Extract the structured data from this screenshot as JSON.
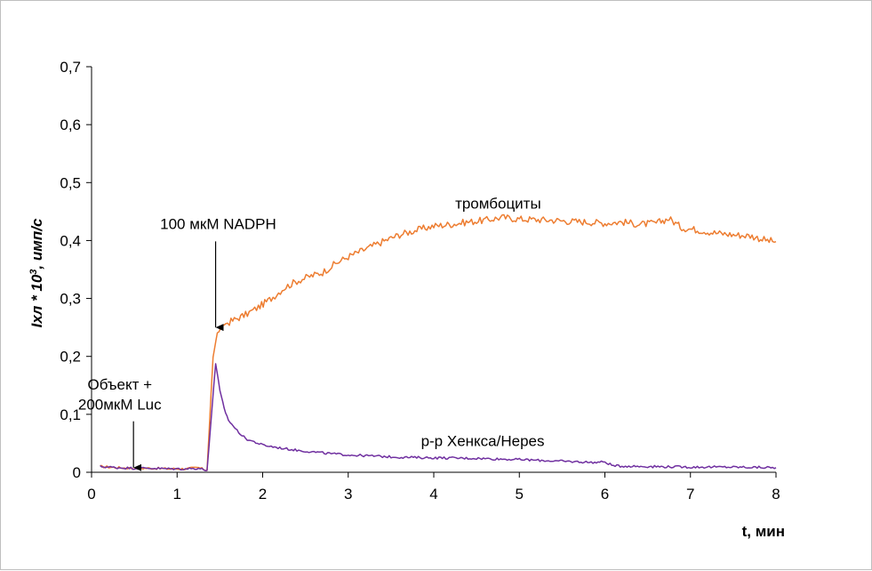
{
  "chart_data": {
    "type": "line",
    "title": "",
    "xlabel": "t, мин",
    "ylabel": {
      "base": "Iхл * 10",
      "exp": "3",
      "rest": ", имп/с"
    },
    "xlim": [
      0,
      8
    ],
    "ylim": [
      0,
      0.7
    ],
    "x_ticks": [
      0,
      1,
      2,
      3,
      4,
      5,
      6,
      7,
      8
    ],
    "y_ticks": [
      0,
      0.1,
      0.2,
      0.3,
      0.4,
      0.5,
      0.6,
      0.7
    ],
    "y_tick_labels": [
      "0",
      "0,1",
      "0,2",
      "0,3",
      "0,4",
      "0,5",
      "0,6",
      "0,7"
    ],
    "x_tick_labels": [
      "0",
      "1",
      "2",
      "3",
      "4",
      "5",
      "6",
      "7",
      "8"
    ],
    "grid": false,
    "legend": "none",
    "series": [
      {
        "name": "тромбоциты",
        "color": "#ED7D31",
        "points": [
          [
            0.1,
            0.01
          ],
          [
            0.3,
            0.008
          ],
          [
            0.5,
            0.007
          ],
          [
            0.7,
            0.007
          ],
          [
            0.9,
            0.006
          ],
          [
            1.1,
            0.006
          ],
          [
            1.25,
            0.008
          ],
          [
            1.35,
            0.003
          ],
          [
            1.42,
            0.2
          ],
          [
            1.47,
            0.24
          ],
          [
            1.55,
            0.255
          ],
          [
            1.65,
            0.262
          ],
          [
            1.8,
            0.272
          ],
          [
            1.95,
            0.285
          ],
          [
            2.1,
            0.3
          ],
          [
            2.25,
            0.318
          ],
          [
            2.4,
            0.33
          ],
          [
            2.55,
            0.338
          ],
          [
            2.7,
            0.345
          ],
          [
            2.85,
            0.36
          ],
          [
            3.0,
            0.372
          ],
          [
            3.2,
            0.385
          ],
          [
            3.4,
            0.398
          ],
          [
            3.6,
            0.41
          ],
          [
            3.8,
            0.418
          ],
          [
            4.0,
            0.425
          ],
          [
            4.2,
            0.428
          ],
          [
            4.4,
            0.432
          ],
          [
            4.6,
            0.435
          ],
          [
            4.8,
            0.44
          ],
          [
            5.0,
            0.437
          ],
          [
            5.2,
            0.436
          ],
          [
            5.4,
            0.435
          ],
          [
            5.6,
            0.433
          ],
          [
            5.8,
            0.432
          ],
          [
            6.0,
            0.43
          ],
          [
            6.2,
            0.432
          ],
          [
            6.4,
            0.428
          ],
          [
            6.6,
            0.43
          ],
          [
            6.75,
            0.438
          ],
          [
            6.9,
            0.422
          ],
          [
            7.1,
            0.418
          ],
          [
            7.3,
            0.413
          ],
          [
            7.5,
            0.41
          ],
          [
            7.7,
            0.408
          ],
          [
            7.9,
            0.4
          ],
          [
            8.0,
            0.398
          ]
        ]
      },
      {
        "name": "р-р Хенкса/Hepes",
        "color": "#7030A0",
        "points": [
          [
            0.1,
            0.01
          ],
          [
            0.3,
            0.008
          ],
          [
            0.5,
            0.007
          ],
          [
            0.7,
            0.007
          ],
          [
            0.9,
            0.006
          ],
          [
            1.1,
            0.006
          ],
          [
            1.25,
            0.007
          ],
          [
            1.35,
            0.003
          ],
          [
            1.45,
            0.188
          ],
          [
            1.5,
            0.14
          ],
          [
            1.55,
            0.11
          ],
          [
            1.6,
            0.09
          ],
          [
            1.7,
            0.072
          ],
          [
            1.8,
            0.058
          ],
          [
            2.0,
            0.047
          ],
          [
            2.2,
            0.042
          ],
          [
            2.4,
            0.038
          ],
          [
            2.6,
            0.035
          ],
          [
            2.8,
            0.032
          ],
          [
            3.0,
            0.03
          ],
          [
            3.3,
            0.028
          ],
          [
            3.6,
            0.026
          ],
          [
            4.0,
            0.025
          ],
          [
            4.5,
            0.024
          ],
          [
            5.0,
            0.022
          ],
          [
            5.5,
            0.019
          ],
          [
            5.9,
            0.017
          ],
          [
            6.0,
            0.018
          ],
          [
            6.1,
            0.011
          ],
          [
            6.5,
            0.01
          ],
          [
            7.0,
            0.009
          ],
          [
            7.5,
            0.009
          ],
          [
            8.0,
            0.008
          ]
        ]
      }
    ],
    "annotations": {
      "trombocity": {
        "text": "тромбоциты",
        "x": 4.25,
        "y": 0.455
      },
      "nadph": {
        "text": "100 мкМ NADPH",
        "x": 1.48,
        "y": 0.42,
        "arrow_to": [
          1.45,
          0.25
        ]
      },
      "object_line1": {
        "text": "Объект +",
        "x": 0.33,
        "y": 0.143
      },
      "object_line2": {
        "text": "200мкМ Luc",
        "x": 0.33,
        "y": 0.108
      },
      "object_arrow": {
        "x": 0.49,
        "from_y": 0.088,
        "to_y": 0.008
      },
      "hanks": {
        "text": "р-р Хенкса/Hepes",
        "x": 3.85,
        "y": 0.045
      }
    }
  }
}
